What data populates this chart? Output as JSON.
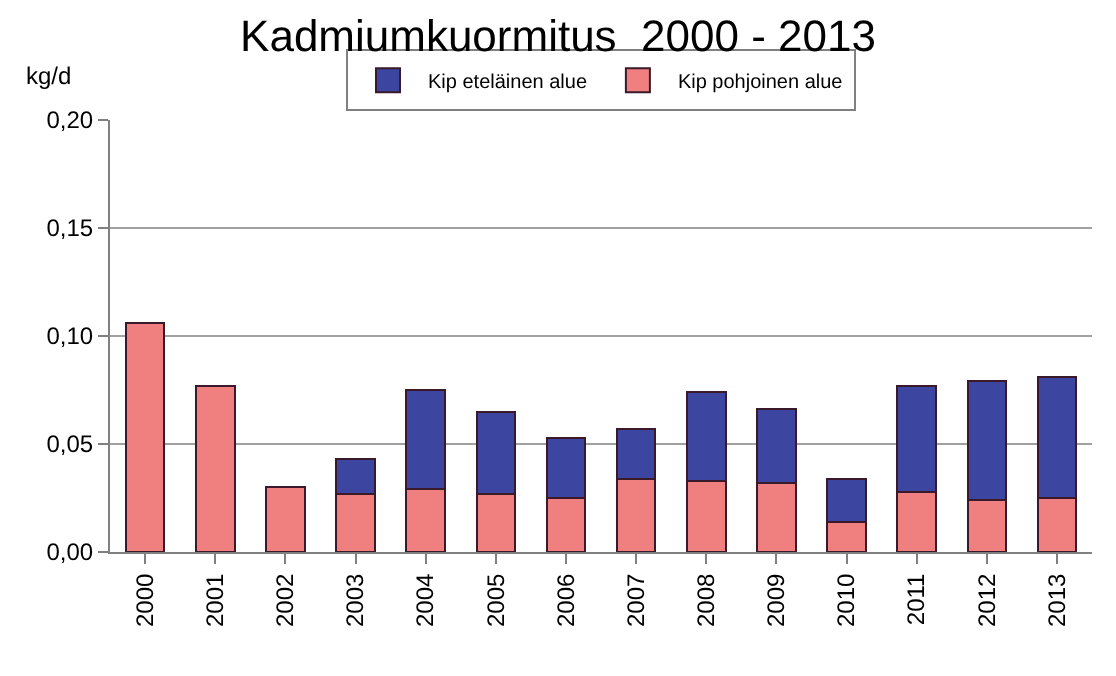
{
  "chart_data": {
    "type": "bar",
    "title": "Kadmiumkuormitus  2000 - 2013",
    "ylabel": "kg/d",
    "stacked": true,
    "categories": [
      "2000",
      "2001",
      "2002",
      "2003",
      "2004",
      "2005",
      "2006",
      "2007",
      "2008",
      "2009",
      "2010",
      "2011",
      "2012",
      "2013"
    ],
    "series": [
      {
        "name": "Kip pohjoinen alue",
        "color": "#f08080",
        "values": [
          0.106,
          0.077,
          0.03,
          0.027,
          0.029,
          0.027,
          0.025,
          0.034,
          0.033,
          0.032,
          0.014,
          0.028,
          0.024,
          0.025
        ]
      },
      {
        "name": "Kip eteläinen alue",
        "color": "#3c46a0",
        "values": [
          null,
          null,
          null,
          0.016,
          0.046,
          0.038,
          0.028,
          0.023,
          0.041,
          0.034,
          0.02,
          0.049,
          0.055,
          0.056
        ]
      }
    ],
    "ylim": [
      0,
      0.2
    ],
    "yticks": [
      {
        "value": 0,
        "label": "0,00"
      },
      {
        "value": 0.05,
        "label": "0,05"
      },
      {
        "value": 0.1,
        "label": "0,10"
      },
      {
        "value": 0.15,
        "label": "0,15"
      },
      {
        "value": 0.2,
        "label": "0,20"
      }
    ],
    "grid": "y",
    "legend": "top"
  }
}
